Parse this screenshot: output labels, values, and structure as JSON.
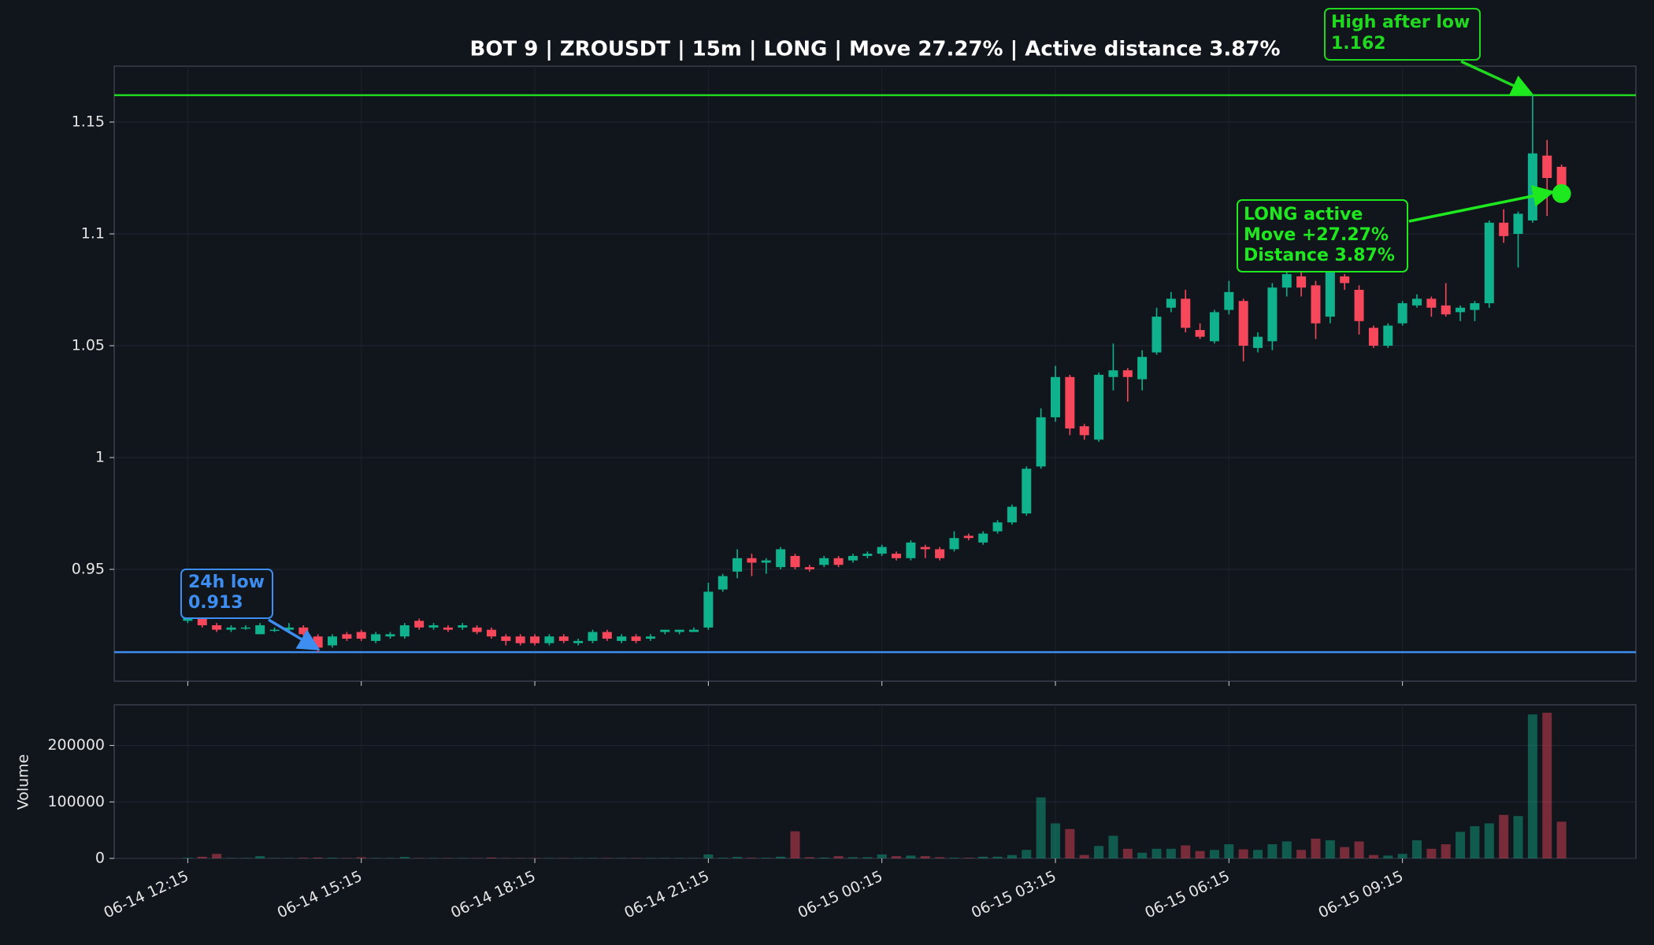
{
  "chart_data": [
    {
      "type": "candlestick",
      "title": "BOT 9 | ZROUSDT | 15m | LONG | Move 27.27% | Active distance 3.87%",
      "categories": [
        "06-14 12:15",
        null,
        null,
        null,
        null,
        null,
        null,
        null,
        null,
        null,
        null,
        null,
        "06-14 15:15",
        null,
        null,
        null,
        null,
        null,
        null,
        null,
        null,
        null,
        null,
        null,
        "06-14 18:15",
        null,
        null,
        null,
        null,
        null,
        null,
        null,
        null,
        null,
        null,
        null,
        "06-14 21:15",
        null,
        null,
        null,
        null,
        null,
        null,
        null,
        null,
        null,
        null,
        null,
        "06-15 00:15",
        null,
        null,
        null,
        null,
        null,
        null,
        null,
        null,
        null,
        null,
        null,
        "06-15 03:15",
        null,
        null,
        null,
        null,
        null,
        null,
        null,
        null,
        null,
        null,
        null,
        "06-15 06:15",
        null,
        null,
        null,
        null,
        null,
        null,
        null,
        null,
        null,
        null,
        null,
        "06-15 09:15",
        null,
        null,
        null,
        null,
        null,
        null,
        null,
        null,
        null,
        null,
        null
      ],
      "open": [
        0.927,
        0.928,
        0.925,
        0.923,
        0.924,
        0.921,
        0.923,
        0.923,
        0.924,
        0.92,
        0.916,
        0.921,
        0.922,
        0.918,
        0.92,
        0.92,
        0.927,
        0.924,
        0.924,
        0.924,
        0.924,
        0.923,
        0.92,
        0.92,
        0.92,
        0.917,
        0.92,
        0.917,
        0.918,
        0.922,
        0.918,
        0.92,
        0.919,
        0.922,
        0.922,
        0.922,
        0.924,
        0.941,
        0.949,
        0.955,
        0.953,
        0.951,
        0.956,
        0.951,
        0.952,
        0.955,
        0.954,
        0.956,
        0.957,
        0.957,
        0.955,
        0.96,
        0.959,
        0.959,
        0.965,
        0.962,
        0.967,
        0.971,
        0.975,
        0.996,
        1.018,
        1.036,
        1.014,
        1.008,
        1.036,
        1.039,
        1.035,
        1.047,
        1.067,
        1.071,
        1.057,
        1.052,
        1.066,
        1.07,
        1.049,
        1.052,
        1.076,
        1.081,
        1.077,
        1.063,
        1.081,
        1.075,
        1.058,
        1.05,
        1.06,
        1.068,
        1.071,
        1.068,
        1.065,
        1.066,
        1.069,
        1.105,
        1.1,
        1.106,
        1.135,
        1.13
      ],
      "high": [
        0.93,
        0.929,
        0.926,
        0.925,
        0.925,
        0.926,
        0.924,
        0.926,
        0.925,
        0.921,
        0.921,
        0.922,
        0.923,
        0.922,
        0.922,
        0.926,
        0.928,
        0.926,
        0.925,
        0.926,
        0.925,
        0.924,
        0.921,
        0.921,
        0.921,
        0.921,
        0.921,
        0.919,
        0.923,
        0.923,
        0.921,
        0.921,
        0.921,
        0.923,
        0.923,
        0.924,
        0.944,
        0.948,
        0.959,
        0.957,
        0.955,
        0.96,
        0.957,
        0.952,
        0.956,
        0.956,
        0.957,
        0.958,
        0.961,
        0.958,
        0.963,
        0.961,
        0.96,
        0.967,
        0.966,
        0.967,
        0.972,
        0.979,
        0.996,
        1.022,
        1.041,
        1.037,
        1.015,
        1.038,
        1.051,
        1.04,
        1.048,
        1.067,
        1.074,
        1.075,
        1.06,
        1.066,
        1.079,
        1.071,
        1.056,
        1.078,
        1.085,
        1.083,
        1.079,
        1.089,
        1.082,
        1.077,
        1.059,
        1.06,
        1.07,
        1.073,
        1.072,
        1.078,
        1.068,
        1.07,
        1.106,
        1.111,
        1.11,
        1.162,
        1.142,
        1.131
      ],
      "low": [
        0.926,
        0.924,
        0.922,
        0.922,
        0.923,
        0.921,
        0.922,
        0.922,
        0.92,
        0.913,
        0.915,
        0.918,
        0.918,
        0.917,
        0.919,
        0.919,
        0.923,
        0.923,
        0.922,
        0.923,
        0.921,
        0.919,
        0.916,
        0.916,
        0.916,
        0.916,
        0.917,
        0.916,
        0.917,
        0.918,
        0.917,
        0.917,
        0.918,
        0.921,
        0.921,
        0.922,
        0.923,
        0.94,
        0.946,
        0.947,
        0.948,
        0.95,
        0.95,
        0.949,
        0.951,
        0.951,
        0.953,
        0.955,
        0.956,
        0.954,
        0.954,
        0.955,
        0.954,
        0.958,
        0.963,
        0.961,
        0.966,
        0.97,
        0.974,
        0.995,
        1.016,
        1.01,
        1.008,
        1.007,
        1.03,
        1.025,
        1.03,
        1.046,
        1.065,
        1.056,
        1.053,
        1.051,
        1.064,
        1.043,
        1.047,
        1.048,
        1.072,
        1.072,
        1.053,
        1.06,
        1.075,
        1.055,
        1.049,
        1.049,
        1.059,
        1.067,
        1.063,
        1.063,
        1.061,
        1.061,
        1.067,
        1.096,
        1.085,
        1.105,
        1.108,
        1.115
      ],
      "close": [
        0.929,
        0.925,
        0.923,
        0.924,
        0.924,
        0.925,
        0.923,
        0.924,
        0.921,
        0.915,
        0.92,
        0.919,
        0.919,
        0.921,
        0.921,
        0.925,
        0.924,
        0.925,
        0.923,
        0.925,
        0.922,
        0.92,
        0.918,
        0.917,
        0.917,
        0.92,
        0.918,
        0.918,
        0.922,
        0.919,
        0.92,
        0.918,
        0.92,
        0.923,
        0.923,
        0.923,
        0.94,
        0.947,
        0.955,
        0.953,
        0.954,
        0.959,
        0.951,
        0.95,
        0.955,
        0.952,
        0.956,
        0.957,
        0.96,
        0.955,
        0.962,
        0.959,
        0.955,
        0.964,
        0.964,
        0.966,
        0.971,
        0.978,
        0.995,
        1.018,
        1.036,
        1.013,
        1.01,
        1.037,
        1.039,
        1.036,
        1.045,
        1.063,
        1.071,
        1.058,
        1.054,
        1.065,
        1.074,
        1.05,
        1.054,
        1.076,
        1.082,
        1.076,
        1.06,
        1.087,
        1.078,
        1.061,
        1.05,
        1.059,
        1.069,
        1.071,
        1.067,
        1.064,
        1.067,
        1.069,
        1.105,
        1.099,
        1.109,
        1.136,
        1.125,
        1.118
      ],
      "up_color": "#0fb28c",
      "down_color": "#f6475b",
      "ylim": [
        0.9,
        1.175
      ],
      "yticks": [
        0.95,
        1,
        1.05,
        1.1,
        1.15
      ],
      "grid": true,
      "hlines": [
        {
          "label": "24h low",
          "value": 0.913,
          "color": "#3d8ef0"
        },
        {
          "label": "High after low",
          "value": 1.162,
          "color": "#1fd81f"
        }
      ],
      "status": {
        "lines": [
          "LONG active",
          "Move +27.27%",
          "Distance 3.87%"
        ],
        "color": "#1ee81e"
      }
    },
    {
      "type": "bar",
      "ylabel": "Volume",
      "values": [
        1000,
        3000,
        8000,
        500,
        500,
        4000,
        500,
        500,
        1000,
        1500,
        1000,
        500,
        2000,
        500,
        500,
        2500,
        500,
        500,
        500,
        500,
        500,
        1500,
        500,
        500,
        500,
        500,
        500,
        500,
        500,
        500,
        500,
        500,
        500,
        500,
        500,
        500,
        7000,
        1000,
        2500,
        1000,
        1000,
        3000,
        48000,
        2000,
        1500,
        4000,
        2000,
        2000,
        7000,
        4000,
        5000,
        4000,
        2000,
        1000,
        1000,
        3000,
        3000,
        6000,
        15000,
        108000,
        62000,
        52000,
        6000,
        22000,
        40000,
        17000,
        10000,
        17000,
        17000,
        23000,
        13000,
        15000,
        25000,
        16000,
        15000,
        25000,
        30000,
        15000,
        35000,
        32000,
        20000,
        30000,
        6000,
        5000,
        8000,
        32000,
        17000,
        25000,
        47000,
        57000,
        62000,
        77000,
        75000,
        255000,
        258000,
        65000
      ],
      "ylim": [
        0,
        272000
      ],
      "yticks": [
        0,
        100000,
        200000
      ],
      "grid": true
    }
  ]
}
